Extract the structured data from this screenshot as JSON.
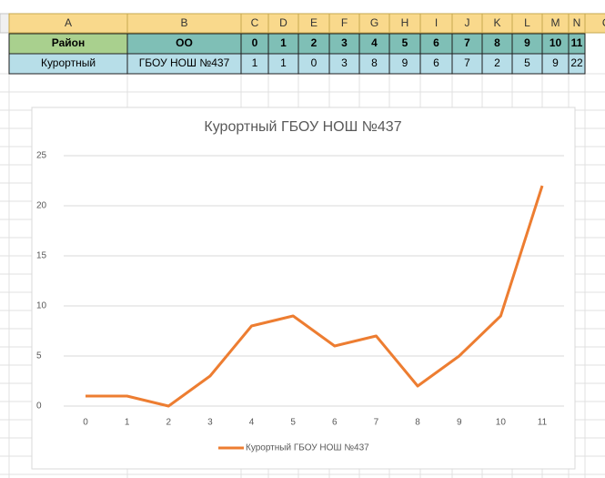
{
  "table": {
    "columns": [
      "A",
      "B",
      "C",
      "D",
      "E",
      "F",
      "G",
      "H",
      "I",
      "J",
      "K",
      "L",
      "M",
      "N",
      "O"
    ],
    "rows": [
      [
        "Район",
        "ОО",
        0,
        1,
        2,
        3,
        4,
        5,
        6,
        7,
        8,
        9,
        10,
        11
      ],
      [
        "Курортный",
        "ГБОУ НОШ №437",
        1,
        1,
        0,
        3,
        8,
        9,
        6,
        7,
        2,
        5,
        9,
        22
      ]
    ]
  },
  "chart_data": {
    "type": "line",
    "title": "Курортный ГБОУ НОШ №437",
    "categories": [
      "0",
      "1",
      "2",
      "3",
      "4",
      "5",
      "6",
      "7",
      "8",
      "9",
      "10",
      "11"
    ],
    "series": [
      {
        "name": "Курортный ГБОУ НОШ №437",
        "color": "#ed7d31",
        "values": [
          1,
          1,
          0,
          3,
          8,
          9,
          6,
          7,
          2,
          5,
          9,
          22
        ]
      }
    ],
    "ylim": [
      0,
      25
    ],
    "yticks": [
      0,
      5,
      10,
      15,
      20,
      25
    ],
    "grid": true,
    "legend": "bottom"
  }
}
